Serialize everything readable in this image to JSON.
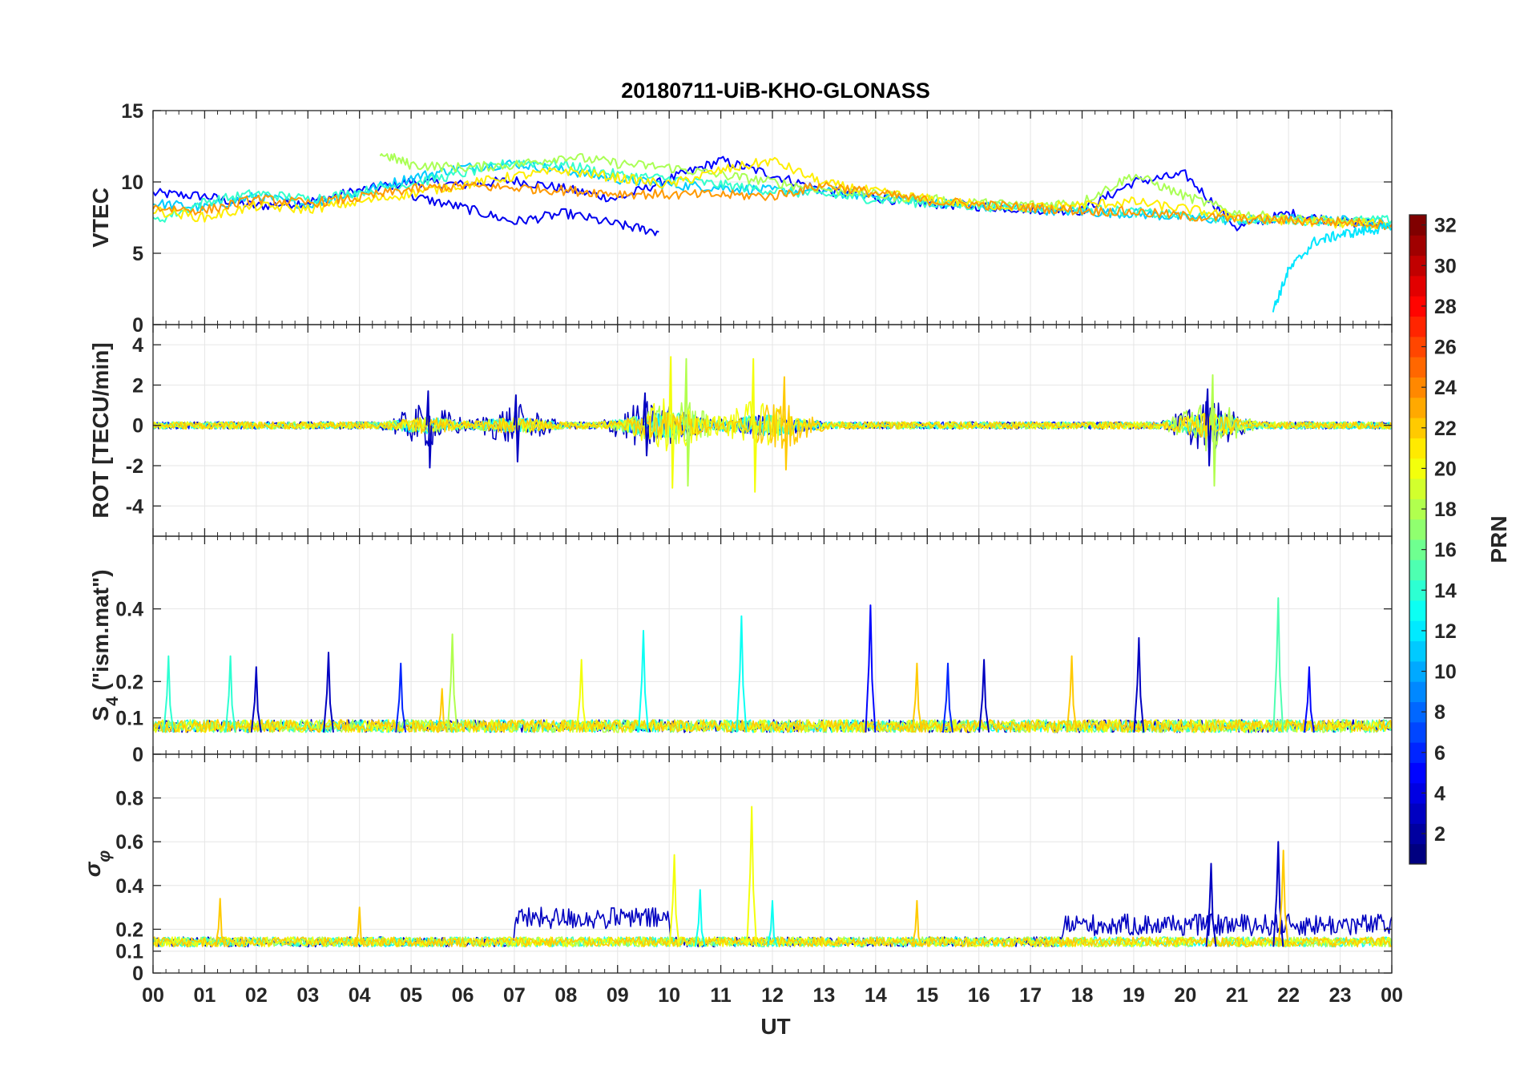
{
  "chart_data": {
    "type": "line",
    "title": "20180711-UiB-KHO-GLONASS",
    "xlabel": "UT",
    "x_ticks": [
      "00",
      "01",
      "02",
      "03",
      "04",
      "05",
      "06",
      "07",
      "08",
      "09",
      "10",
      "11",
      "12",
      "13",
      "14",
      "15",
      "16",
      "17",
      "18",
      "19",
      "20",
      "21",
      "22",
      "23",
      "00"
    ],
    "xlim": [
      0,
      24
    ],
    "grid": true,
    "colorbar": {
      "label": "PRN",
      "colormap": "jet",
      "range": [
        1,
        32
      ],
      "ticks": [
        2,
        4,
        6,
        8,
        10,
        12,
        14,
        16,
        18,
        20,
        22,
        24,
        26,
        28,
        30,
        32
      ],
      "placement": "right"
    },
    "panels": [
      {
        "ylabel": "VTEC",
        "ylim": [
          0,
          15
        ],
        "yticks": [
          0,
          5,
          10,
          15
        ],
        "series": [
          {
            "prn": 3,
            "color": "#0000ff",
            "x": [
              0,
              1,
              2,
              3,
              4,
              5,
              6,
              7,
              8,
              9,
              10,
              11,
              12,
              13,
              14,
              15,
              16,
              17,
              18,
              19,
              20,
              21,
              22,
              23,
              24
            ],
            "y": [
              9.2,
              9.0,
              8.3,
              8.6,
              9.4,
              10.0,
              9.8,
              10.1,
              9.5,
              8.8,
              10.2,
              11.5,
              10.5,
              9.4,
              8.9,
              8.5,
              8.3,
              8.1,
              8.0,
              10.0,
              10.5,
              6.8,
              7.8,
              7.2,
              7.0
            ]
          },
          {
            "prn": 5,
            "color": "#0000ee",
            "x": [
              5,
              6,
              7,
              8,
              9,
              9.8
            ],
            "y": [
              9.0,
              8.2,
              7.2,
              7.8,
              7.0,
              6.5
            ]
          },
          {
            "prn": 13,
            "color": "#00ccff",
            "x": [
              0,
              1,
              2,
              3,
              4,
              5,
              6,
              7,
              8,
              9,
              10,
              11,
              12,
              13,
              14,
              15,
              16,
              17,
              18,
              19,
              20,
              21,
              22,
              23,
              24
            ],
            "y": [
              8.5,
              8.2,
              9.0,
              8.4,
              9.3,
              10.3,
              11.0,
              11.3,
              10.8,
              10.2,
              9.8,
              9.6,
              9.4,
              9.3,
              9.0,
              8.6,
              8.3,
              8.1,
              7.9,
              7.8,
              7.5,
              7.3,
              7.4,
              7.3,
              7.2
            ]
          },
          {
            "prn": 15,
            "color": "#33ffcc",
            "x": [
              0,
              1,
              2,
              3,
              4,
              5,
              6,
              7,
              8,
              9,
              10,
              11,
              12,
              13,
              14,
              15,
              16,
              17,
              18,
              19,
              20,
              21,
              22,
              23,
              24
            ],
            "y": [
              7.2,
              8.6,
              9.2,
              8.8,
              9.3,
              9.9,
              10.6,
              11.4,
              11.2,
              10.5,
              10.2,
              9.8,
              9.4,
              9.1,
              8.8,
              8.5,
              8.3,
              8.2,
              8.1,
              7.9,
              7.6,
              7.4,
              7.3,
              7.3,
              7.3
            ]
          },
          {
            "prn": 18,
            "color": "#aaff55",
            "x": [
              4.4,
              5,
              6,
              7,
              8,
              9,
              10,
              11,
              12,
              13,
              14,
              15,
              16,
              17,
              18,
              19,
              20,
              21,
              22,
              23,
              24
            ],
            "y": [
              12.0,
              11.2,
              11.0,
              11.2,
              11.8,
              11.3,
              11.0,
              10.5,
              10.0,
              9.5,
              9.1,
              8.8,
              8.5,
              8.4,
              8.6,
              10.5,
              9.0,
              7.8,
              7.4,
              7.2,
              7.0
            ]
          },
          {
            "prn": 20,
            "color": "#ffee00",
            "x": [
              0,
              1,
              2,
              3,
              4,
              5,
              6,
              7,
              8,
              9,
              10,
              11,
              12,
              13,
              14,
              15,
              16,
              17,
              18,
              19,
              20,
              21,
              22,
              23,
              24
            ],
            "y": [
              8.0,
              7.5,
              8.3,
              8.1,
              8.6,
              9.2,
              9.8,
              10.4,
              10.8,
              10.3,
              9.8,
              10.8,
              11.5,
              9.9,
              9.3,
              8.8,
              8.4,
              8.2,
              8.4,
              8.6,
              8.1,
              7.6,
              7.3,
              7.1,
              7.0
            ]
          },
          {
            "prn": 22,
            "color": "#ff9900",
            "x": [
              0,
              1,
              2,
              3,
              4,
              5,
              6,
              7,
              8,
              9,
              10,
              11,
              12,
              13,
              14,
              15,
              16,
              17,
              18,
              19,
              20,
              21,
              22,
              23,
              24
            ],
            "y": [
              8.2,
              8.0,
              8.8,
              8.5,
              8.9,
              9.5,
              9.7,
              9.6,
              9.4,
              9.2,
              9.1,
              9.1,
              9.0,
              9.8,
              9.2,
              8.7,
              8.4,
              8.2,
              8.0,
              7.9,
              7.6,
              7.4,
              7.3,
              7.2,
              7.0
            ]
          },
          {
            "prn": 12,
            "color": "#00e6ff",
            "x": [
              21.7,
              22,
              22.5,
              23,
              23.5,
              24
            ],
            "y": [
              1.0,
              3.8,
              5.8,
              6.3,
              6.6,
              6.8
            ]
          }
        ]
      },
      {
        "ylabel": "ROT [TECU/min]",
        "ylim": [
          -5.5,
          5
        ],
        "yticks": [
          -4,
          -2,
          0,
          2,
          4
        ],
        "spike_events": [
          {
            "x": 5.3,
            "max": 1.7,
            "min": -2.1,
            "prn": 3
          },
          {
            "x": 7.0,
            "max": 1.5,
            "min": -1.8,
            "prn": 3
          },
          {
            "x": 9.5,
            "max": 1.6,
            "min": -1.5,
            "prn": 3
          },
          {
            "x": 10.0,
            "max": 3.4,
            "min": -3.1,
            "prn": 20
          },
          {
            "x": 10.3,
            "max": 3.3,
            "min": -3.0,
            "prn": 18
          },
          {
            "x": 11.6,
            "max": 3.3,
            "min": -3.3,
            "prn": 20
          },
          {
            "x": 12.2,
            "max": 2.4,
            "min": -2.2,
            "prn": 22
          },
          {
            "x": 20.5,
            "max": 2.5,
            "min": -3.0,
            "prn": 18
          },
          {
            "x": 20.4,
            "max": 1.8,
            "min": -2.0,
            "prn": 3
          }
        ]
      },
      {
        "ylabel": "S_4 (\"ism.mat\")",
        "ylabel_main": "S",
        "ylabel_sub": "4",
        "ylabel_rest": " (\"ism.mat\")",
        "ylim": [
          0,
          0.6
        ],
        "yticks": [
          0,
          0.1,
          0.2,
          0.4
        ],
        "peaks": [
          {
            "x": 0.3,
            "y": 0.27,
            "prn": 14
          },
          {
            "x": 1.5,
            "y": 0.27,
            "prn": 14
          },
          {
            "x": 2.0,
            "y": 0.24,
            "prn": 3
          },
          {
            "x": 3.4,
            "y": 0.28,
            "prn": 3
          },
          {
            "x": 4.8,
            "y": 0.25,
            "prn": 6
          },
          {
            "x": 5.6,
            "y": 0.18,
            "prn": 22
          },
          {
            "x": 5.8,
            "y": 0.33,
            "prn": 18
          },
          {
            "x": 8.3,
            "y": 0.26,
            "prn": 20
          },
          {
            "x": 9.5,
            "y": 0.34,
            "prn": 13
          },
          {
            "x": 11.4,
            "y": 0.38,
            "prn": 13
          },
          {
            "x": 13.9,
            "y": 0.41,
            "prn": 5
          },
          {
            "x": 14.8,
            "y": 0.25,
            "prn": 22
          },
          {
            "x": 15.4,
            "y": 0.25,
            "prn": 6
          },
          {
            "x": 16.1,
            "y": 0.26,
            "prn": 3
          },
          {
            "x": 17.8,
            "y": 0.27,
            "prn": 22
          },
          {
            "x": 19.1,
            "y": 0.32,
            "prn": 3
          },
          {
            "x": 21.8,
            "y": 0.43,
            "prn": 15
          },
          {
            "x": 22.4,
            "y": 0.24,
            "prn": 5
          }
        ]
      },
      {
        "ylabel": "σ_φ",
        "ylabel_main": "σ",
        "ylabel_sub": "φ",
        "ylim": [
          0,
          1
        ],
        "yticks": [
          0,
          0.1,
          0.2,
          0.4,
          0.6,
          0.8
        ],
        "peaks": [
          {
            "x": 1.3,
            "y": 0.34,
            "prn": 22
          },
          {
            "x": 4.0,
            "y": 0.3,
            "prn": 22
          },
          {
            "x": 10.1,
            "y": 0.54,
            "prn": 20
          },
          {
            "x": 10.6,
            "y": 0.38,
            "prn": 13
          },
          {
            "x": 11.6,
            "y": 0.76,
            "prn": 20
          },
          {
            "x": 12.0,
            "y": 0.33,
            "prn": 13
          },
          {
            "x": 14.8,
            "y": 0.33,
            "prn": 22
          },
          {
            "x": 20.5,
            "y": 0.5,
            "prn": 3
          },
          {
            "x": 21.8,
            "y": 0.6,
            "prn": 3
          },
          {
            "x": 21.9,
            "y": 0.56,
            "prn": 22
          }
        ],
        "elevated_band": [
          {
            "x_start": 7.0,
            "x_end": 10.0,
            "level": 0.25,
            "prn": 3
          },
          {
            "x_start": 17.6,
            "x_end": 24.0,
            "level": 0.22,
            "prn": 3
          }
        ]
      }
    ]
  }
}
